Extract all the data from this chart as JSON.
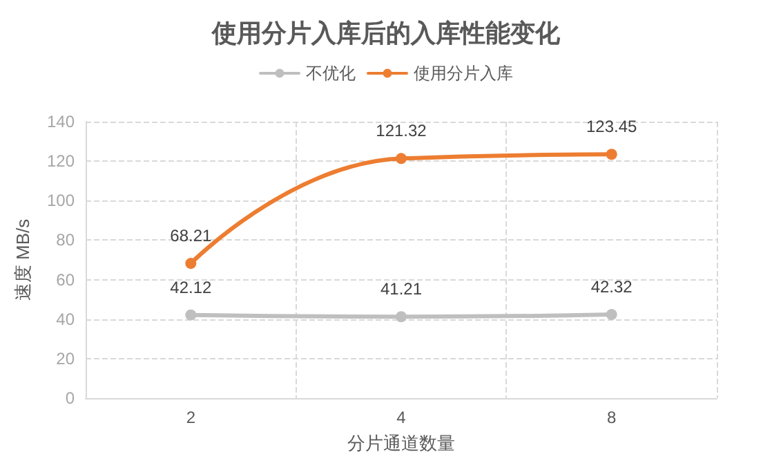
{
  "chart_data": {
    "type": "line",
    "title": "使用分片入库后的入库性能变化",
    "xlabel": "分片通道数量",
    "ylabel": "速度 MB/s",
    "categories": [
      "2",
      "4",
      "8"
    ],
    "series": [
      {
        "name": "不优化",
        "color": "#bfbfbf",
        "values": [
          42.12,
          41.21,
          42.32
        ]
      },
      {
        "name": "使用分片入库",
        "color": "#ed7d31",
        "values": [
          68.21,
          121.32,
          123.45
        ]
      }
    ],
    "ylim": [
      0,
      140
    ],
    "yticks": [
      0,
      20,
      40,
      60,
      80,
      100,
      120,
      140
    ],
    "grid": true,
    "legend": "top",
    "marker": "circle",
    "line_style": "solid",
    "data_labels": true
  }
}
